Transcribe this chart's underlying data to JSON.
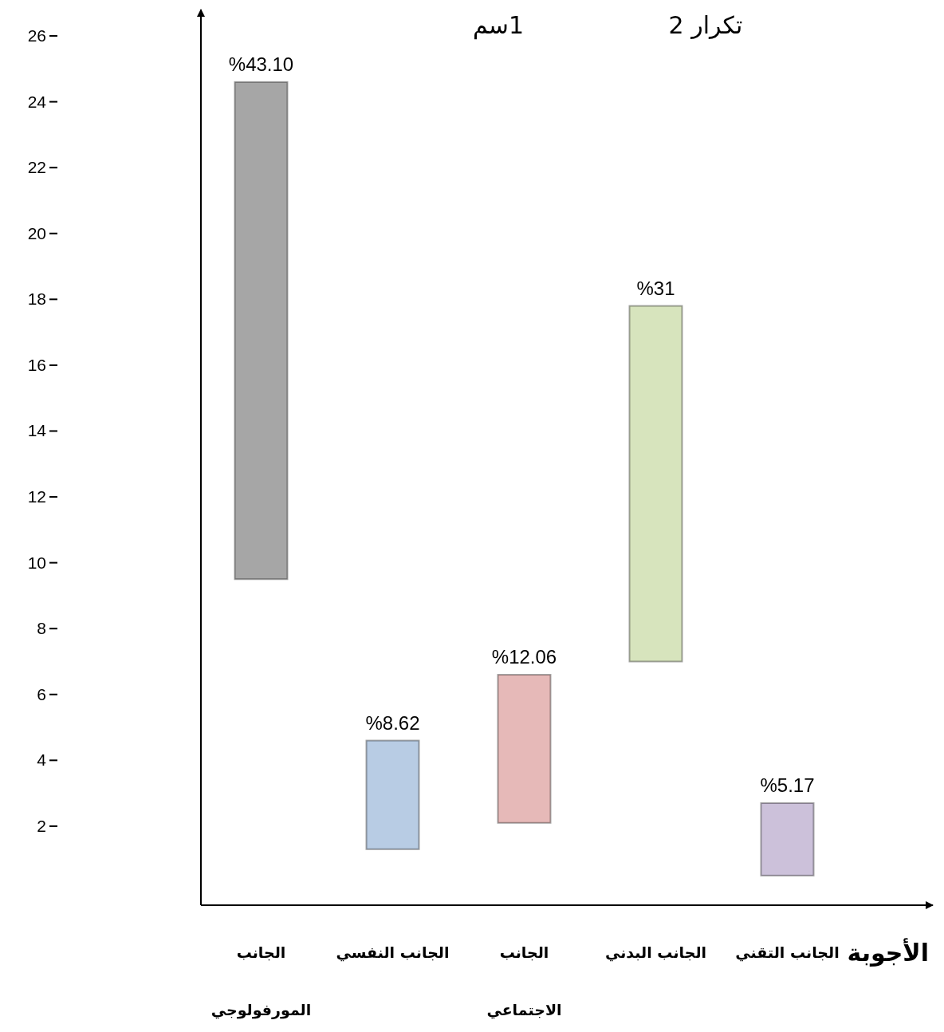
{
  "chart_data": {
    "type": "bar",
    "xlabel": "الأجوبة",
    "categories": [
      "الجانب المورفولوجي",
      "الجانب النفسي",
      "الجانب الاجتماعي",
      "الجانب البدني",
      "الجانب التقني"
    ],
    "values": [
      15.1,
      3.3,
      4.5,
      10.8,
      2.2
    ],
    "base": [
      9.5,
      1.3,
      2.1,
      7.0,
      0.5
    ],
    "colors": [
      "#a6a6a6",
      "#b8cce4",
      "#e6b9b8",
      "#d7e4bd",
      "#ccc1da"
    ],
    "ylim": [
      -0.4,
      26.8
    ],
    "yticks": [
      2,
      4,
      6,
      8,
      10,
      12,
      14,
      16,
      18,
      20,
      22,
      24,
      26
    ],
    "annotations": [
      "%43.10",
      "%8.62",
      "%12.06",
      "%31",
      "%5.17",
      "1سم",
      "تكرار 2"
    ],
    "grid": false
  }
}
